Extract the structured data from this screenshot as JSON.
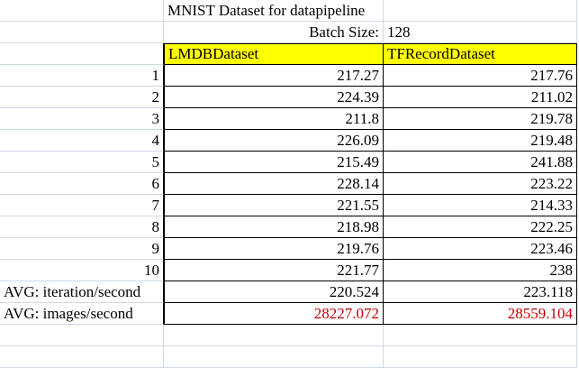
{
  "title": "MNIST Dataset for datapipeline",
  "batch": {
    "label": "Batch Size:",
    "value": "128"
  },
  "headers": {
    "lmdb": "LMDBDataset",
    "tfrecord": "TFRecordDataset"
  },
  "rows": [
    {
      "label": "1",
      "lmdb": "217.27",
      "tfrecord": "217.76"
    },
    {
      "label": "2",
      "lmdb": "224.39",
      "tfrecord": "211.02"
    },
    {
      "label": "3",
      "lmdb": "211.8",
      "tfrecord": "219.78"
    },
    {
      "label": "4",
      "lmdb": "226.09",
      "tfrecord": "219.48"
    },
    {
      "label": "5",
      "lmdb": "215.49",
      "tfrecord": "241.88"
    },
    {
      "label": "6",
      "lmdb": "228.14",
      "tfrecord": "223.22"
    },
    {
      "label": "7",
      "lmdb": "221.55",
      "tfrecord": "214.33"
    },
    {
      "label": "8",
      "lmdb": "218.98",
      "tfrecord": "222.25"
    },
    {
      "label": "9",
      "lmdb": "219.76",
      "tfrecord": "223.46"
    },
    {
      "label": "10",
      "lmdb": "221.77",
      "tfrecord": "238"
    }
  ],
  "avg_iter": {
    "label": "AVG: iteration/second",
    "lmdb": "220.524",
    "tfrecord": "223.118"
  },
  "avg_images": {
    "label": "AVG: images/second",
    "lmdb": "28227.072",
    "tfrecord": "28559.104"
  },
  "colors": {
    "header_fill": "#ffff00",
    "highlight_text": "#c00000",
    "gridline": "#d0d7e5"
  }
}
